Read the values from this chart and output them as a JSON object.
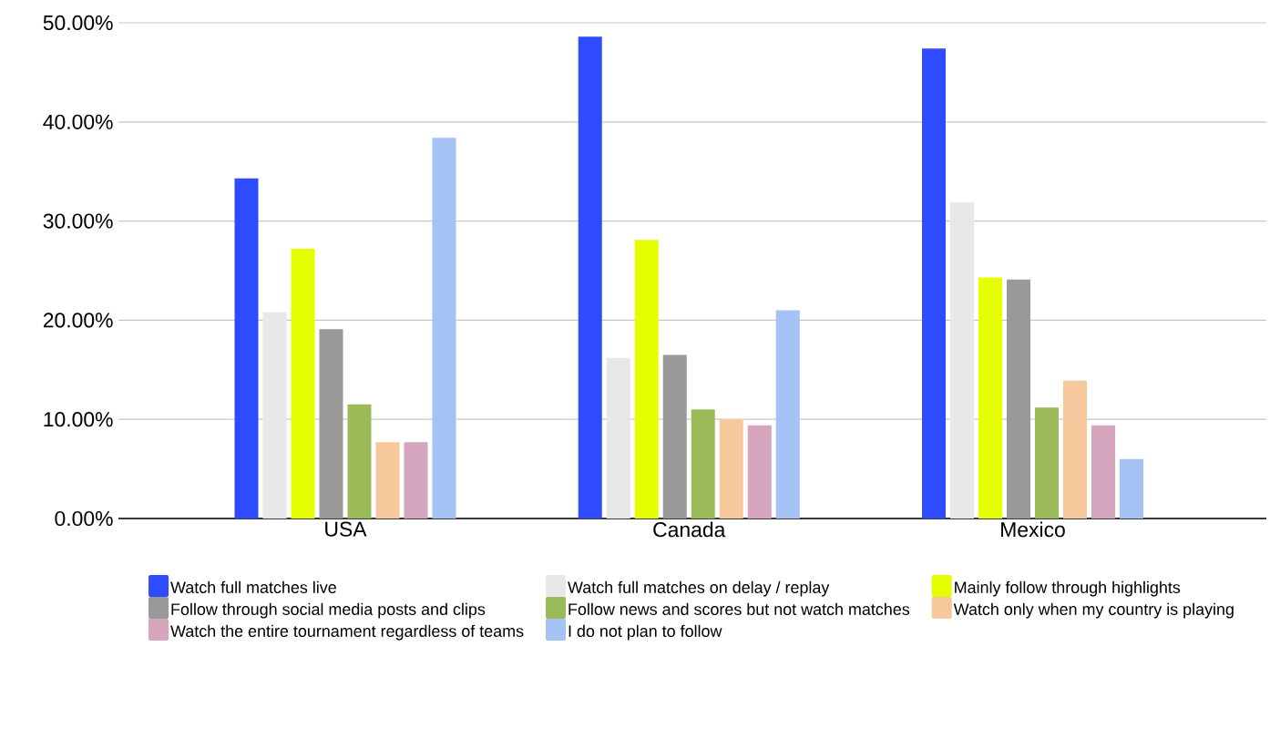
{
  "chart_data": {
    "type": "bar",
    "categories": [
      "USA",
      "Canada",
      "Mexico"
    ],
    "series": [
      {
        "name": "Watch full matches live",
        "color": "#2e4bff",
        "values": [
          34.3,
          48.6,
          47.4
        ]
      },
      {
        "name": "Watch full matches on delay / replay",
        "color": "#e8e8e8",
        "values": [
          20.8,
          16.2,
          31.9
        ]
      },
      {
        "name": "Mainly follow through highlights",
        "color": "#e5ff00",
        "values": [
          27.2,
          28.1,
          24.3
        ]
      },
      {
        "name": "Follow through social media posts and clips",
        "color": "#999999",
        "values": [
          19.1,
          16.5,
          24.1
        ]
      },
      {
        "name": "Follow news and scores but not watch matches",
        "color": "#9bbb59",
        "values": [
          11.5,
          11.0,
          11.2
        ]
      },
      {
        "name": "Watch only when my country is playing",
        "color": "#f7c89b",
        "values": [
          7.7,
          10.0,
          13.9
        ]
      },
      {
        "name": "Watch the entire tournament regardless of teams",
        "color": "#d5a6bd",
        "values": [
          7.7,
          9.4,
          9.4
        ]
      },
      {
        "name": "I do not plan to follow",
        "color": "#a4c2f4",
        "values": [
          38.4,
          21.0,
          6.0
        ]
      }
    ],
    "ylim": [
      0,
      50
    ],
    "yticks": [
      {
        "value": 0,
        "label": "0.00%"
      },
      {
        "value": 10,
        "label": "10.00%"
      },
      {
        "value": 20,
        "label": "20.00%"
      },
      {
        "value": 30,
        "label": "30.00%"
      },
      {
        "value": 40,
        "label": "40.00%"
      },
      {
        "value": 50,
        "label": "50.00%"
      }
    ],
    "grid": "y",
    "legend": "bottom"
  }
}
